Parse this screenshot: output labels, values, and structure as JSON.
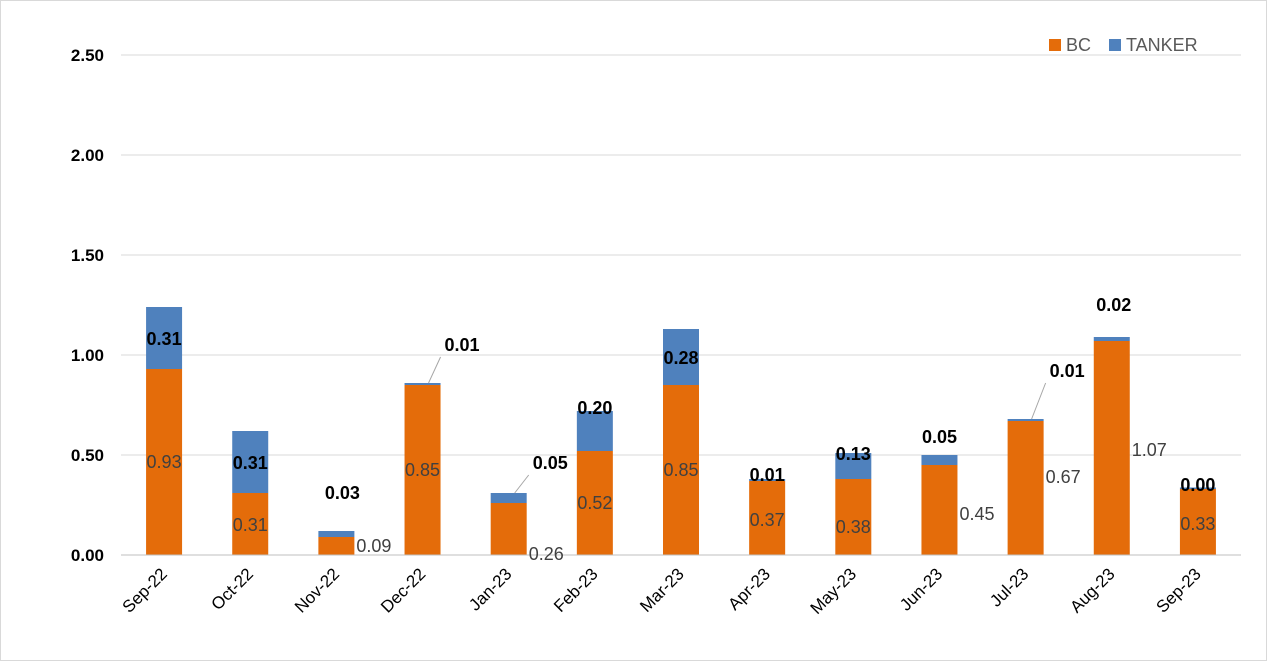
{
  "chart_data": {
    "type": "bar",
    "stacked": true,
    "categories": [
      "Sep-22",
      "Oct-22",
      "Nov-22",
      "Dec-22",
      "Jan-23",
      "Feb-23",
      "Mar-23",
      "Apr-23",
      "May-23",
      "Jun-23",
      "Jul-23",
      "Aug-23",
      "Sep-23"
    ],
    "series": [
      {
        "name": "BC",
        "color": "#e46c0a",
        "values": [
          0.93,
          0.31,
          0.09,
          0.85,
          0.26,
          0.52,
          0.85,
          0.37,
          0.38,
          0.45,
          0.67,
          1.07,
          0.33
        ],
        "labels": [
          "0.93",
          "0.31",
          "0.09",
          "0.85",
          "0.26",
          "0.52",
          "0.85",
          "0.37",
          "0.38",
          "0.45",
          "0.67",
          "1.07",
          "0.33"
        ]
      },
      {
        "name": "TANKER",
        "color": "#4f81bd",
        "values": [
          0.31,
          0.31,
          0.03,
          0.01,
          0.05,
          0.2,
          0.28,
          0.01,
          0.13,
          0.05,
          0.01,
          0.02,
          0.0
        ],
        "labels": [
          "0.31",
          "0.31",
          "0.03",
          "0.01",
          "0.05",
          "0.20",
          "0.28",
          "0.01",
          "0.13",
          "0.05",
          "0.01",
          "0.02",
          "0.00"
        ]
      }
    ],
    "ylim": [
      0,
      2.5
    ],
    "yticks": [
      "0.00",
      "0.50",
      "1.00",
      "1.50",
      "2.00",
      "2.50"
    ],
    "grid": true,
    "legend_position": "top-right",
    "title": "",
    "xlabel": "",
    "ylabel": ""
  }
}
